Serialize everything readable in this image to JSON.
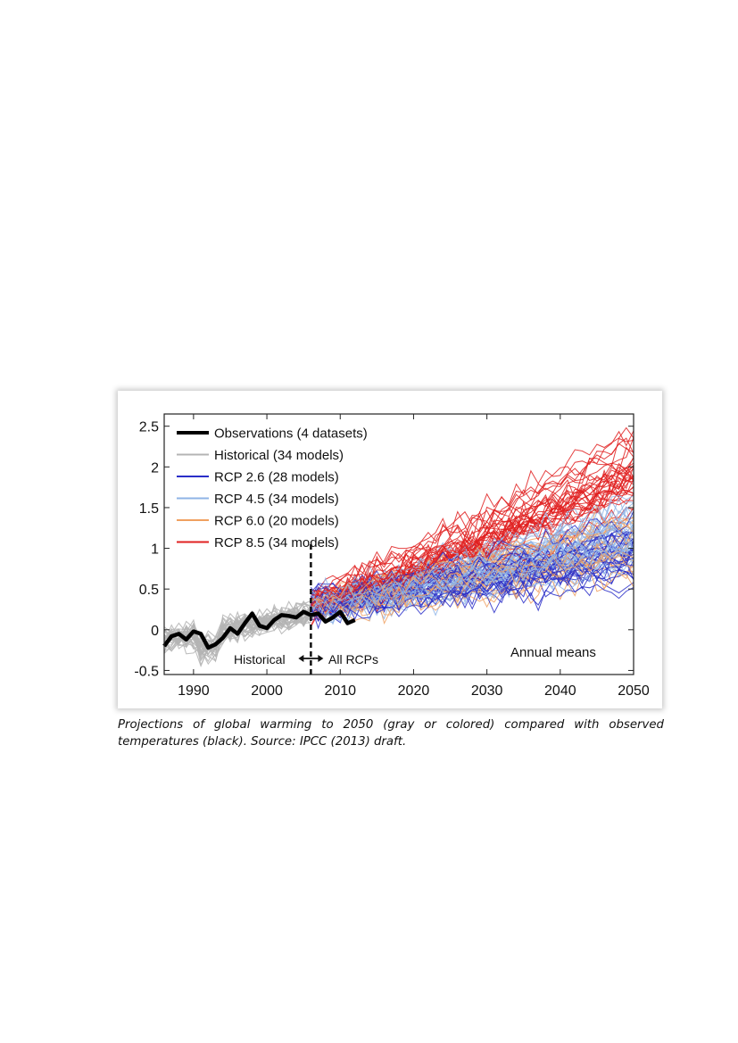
{
  "chart_data": {
    "type": "line",
    "title": "",
    "xlabel": "",
    "ylabel": "",
    "xlim": [
      1986,
      2050
    ],
    "ylim": [
      -0.55,
      2.65
    ],
    "x_ticks": [
      1990,
      2000,
      2010,
      2020,
      2030,
      2040,
      2050
    ],
    "y_ticks": [
      -0.5,
      0,
      0.5,
      1,
      1.5,
      2,
      2.5
    ],
    "y_tick_labels": [
      "-0.5",
      "0",
      "0.5",
      "1",
      "1.5",
      "2",
      "2.5"
    ],
    "legend_position": "top-left",
    "legend": [
      {
        "label": "Observations (4 datasets)",
        "color": "#000000",
        "width": 4
      },
      {
        "label": "Historical (34 models)",
        "color": "#b4b4b4",
        "width": 2
      },
      {
        "label": "RCP 2.6 (28 models)",
        "color": "#2a2ec8",
        "width": 2
      },
      {
        "label": "RCP 4.5 (34 models)",
        "color": "#8fb4e6",
        "width": 2
      },
      {
        "label": "RCP 6.0 (20 models)",
        "color": "#f0a060",
        "width": 2
      },
      {
        "label": "RCP 8.5 (34 models)",
        "color": "#e02020",
        "width": 2
      }
    ],
    "divider_year": 2006,
    "divider_labels": {
      "left": "Historical",
      "right": "All RCPs"
    },
    "annotation": "Annual means",
    "observations": {
      "x": [
        1986,
        1987,
        1988,
        1989,
        1990,
        1991,
        1992,
        1993,
        1994,
        1995,
        1996,
        1997,
        1998,
        1999,
        2000,
        2001,
        2002,
        2003,
        2004,
        2005,
        2006,
        2007,
        2008,
        2009,
        2010,
        2011,
        2012
      ],
      "y": [
        -0.2,
        -0.08,
        -0.05,
        -0.12,
        -0.02,
        -0.05,
        -0.22,
        -0.18,
        -0.1,
        0.02,
        -0.05,
        0.08,
        0.2,
        0.05,
        0.02,
        0.12,
        0.18,
        0.17,
        0.15,
        0.22,
        0.18,
        0.2,
        0.1,
        0.15,
        0.22,
        0.08,
        0.12
      ]
    },
    "historical": {
      "x_range": [
        1986,
        2006
      ],
      "models": 34,
      "spread": [
        -0.5,
        0.5
      ]
    },
    "scenarios": [
      {
        "name": "RCP 2.6",
        "models": 28,
        "x_range": [
          2006,
          2050
        ],
        "mean_start": 0.3,
        "mean_end": 0.85
      },
      {
        "name": "RCP 4.5",
        "models": 34,
        "x_range": [
          2006,
          2050
        ],
        "mean_start": 0.3,
        "mean_end": 1.2
      },
      {
        "name": "RCP 6.0",
        "models": 20,
        "x_range": [
          2006,
          2050
        ],
        "mean_start": 0.3,
        "mean_end": 1.05
      },
      {
        "name": "RCP 8.5",
        "models": 34,
        "x_range": [
          2006,
          2050
        ],
        "mean_start": 0.3,
        "mean_end": 1.9
      }
    ]
  },
  "caption": {
    "line1": "Projections of global warming to 2050 (gray or colored) compared with observed",
    "line2": "temperatures (black).  Source: IPCC (2013) draft."
  }
}
